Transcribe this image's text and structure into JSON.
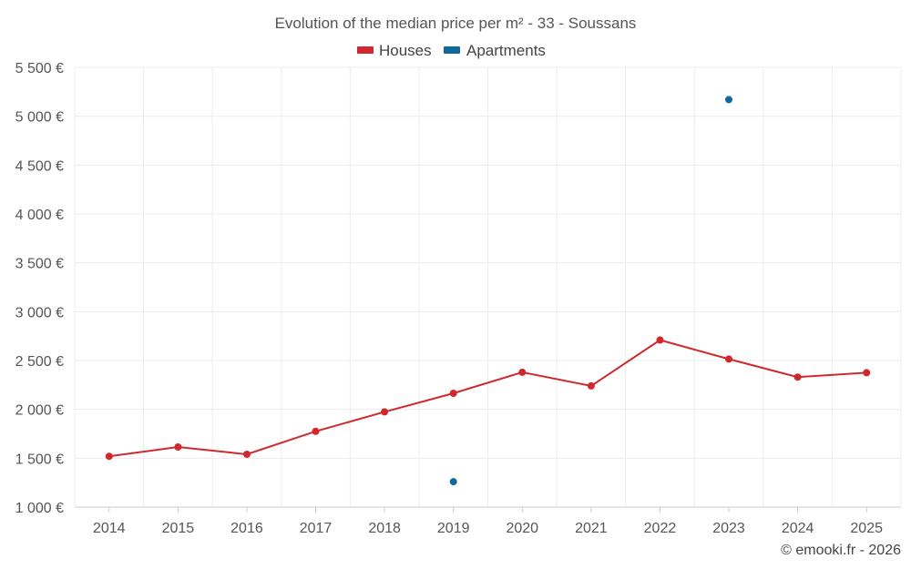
{
  "chart_data": {
    "type": "line",
    "title": "Evolution of the median price per m² - 33 - Soussans",
    "categories": [
      "2014",
      "2015",
      "2016",
      "2017",
      "2018",
      "2019",
      "2020",
      "2021",
      "2022",
      "2023",
      "2024",
      "2025"
    ],
    "series": [
      {
        "name": "Houses",
        "color": "#d0282c",
        "values": [
          1520,
          1615,
          1540,
          1775,
          1975,
          2165,
          2380,
          2240,
          2710,
          2515,
          2330,
          2375
        ]
      },
      {
        "name": "Apartments",
        "color": "#0f6aa0",
        "values": [
          null,
          null,
          null,
          null,
          null,
          1260,
          null,
          null,
          null,
          5170,
          null,
          null
        ]
      }
    ],
    "ylim": [
      1000,
      5500
    ],
    "yticks": [
      1000,
      1500,
      2000,
      2500,
      3000,
      3500,
      4000,
      4500,
      5000,
      5500
    ],
    "ytick_labels": [
      "1 000 €",
      "1 500 €",
      "2 000 €",
      "2 500 €",
      "3 000 €",
      "3 500 €",
      "4 000 €",
      "4 500 €",
      "5 000 €",
      "5 500 €"
    ],
    "xlabel": "",
    "ylabel": "",
    "grid": true,
    "legend": "top-center",
    "credit": "© emooki.fr - 2026"
  }
}
